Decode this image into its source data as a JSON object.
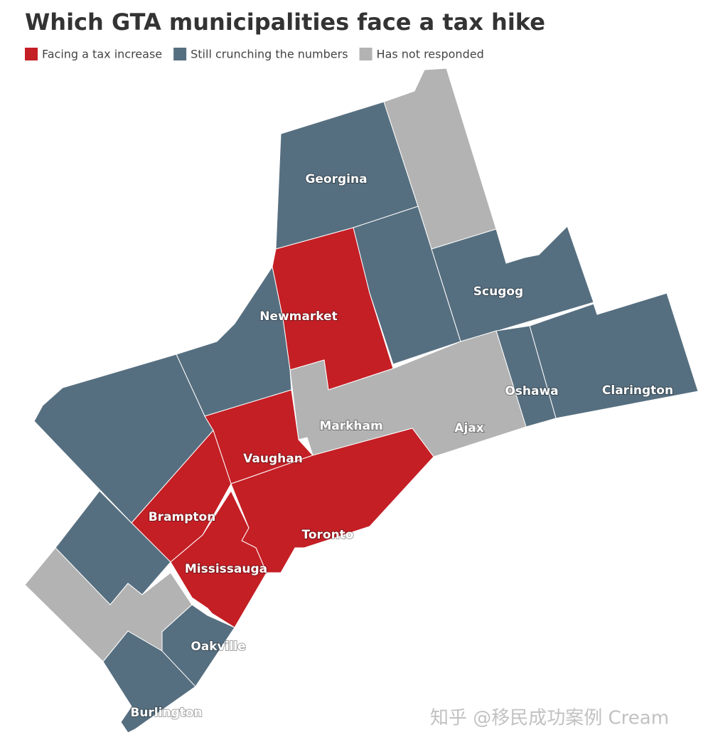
{
  "title": "Which GTA municipalities face a tax hike",
  "legend": [
    {
      "label": "Facing a tax increase",
      "color": "#c41f25"
    },
    {
      "label": "Still crunching the numbers",
      "color": "#566f80"
    },
    {
      "label": "Has not responded",
      "color": "#b3b3b3"
    }
  ],
  "labels": [
    "Georgina",
    "Scugog",
    "Newmarket",
    "Oshawa",
    "Clarington",
    "Markham",
    "Ajax",
    "Vaughan",
    "Brampton",
    "Toronto",
    "Mississauga",
    "Oakville",
    "Burlington"
  ],
  "watermark": "知乎 @移民成功案例 Cream"
}
